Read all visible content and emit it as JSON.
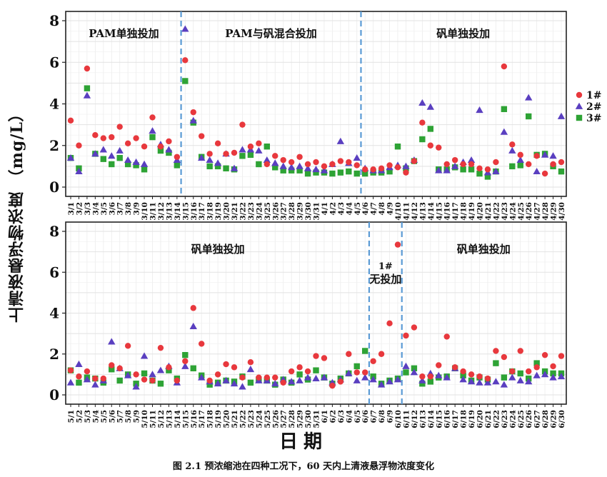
{
  "figure": {
    "ylabel": "上清液悬浮物浓度 （mg/L）",
    "xlabel": "日期",
    "caption": "图 2.1  预浓缩池在四种工况下，60 天内上清液悬浮物浓度变化"
  },
  "colors": {
    "s1": "#e8383d",
    "s2": "#5a3fc0",
    "s3": "#2ea335",
    "divider": "#5b9bd5"
  },
  "legend": [
    "1#",
    "2#",
    "3#"
  ],
  "chart_data": [
    {
      "type": "scatter",
      "ylim": [
        0,
        8
      ],
      "yticks": [
        0,
        2,
        4,
        6,
        8
      ],
      "grid": true,
      "legend_position": "right",
      "categories": [
        "3/1",
        "3/2",
        "3/3",
        "3/4",
        "3/5",
        "3/6",
        "3/7",
        "3/8",
        "3/9",
        "3/10",
        "3/11",
        "3/12",
        "3/13",
        "3/14",
        "3/15",
        "3/16",
        "3/17",
        "3/18",
        "3/19",
        "3/20",
        "3/21",
        "3/22",
        "3/23",
        "3/24",
        "3/25",
        "3/26",
        "3/27",
        "3/28",
        "3/29",
        "3/30",
        "3/31",
        "4/1",
        "4/2",
        "4/3",
        "4/4",
        "4/5",
        "4/6",
        "4/7",
        "4/8",
        "4/9",
        "4/10",
        "4/11",
        "4/12",
        "4/13",
        "4/14",
        "4/15",
        "4/16",
        "4/17",
        "4/18",
        "4/19",
        "4/20",
        "4/21",
        "4/22",
        "4/23",
        "4/24",
        "4/25",
        "4/26",
        "4/27",
        "4/28",
        "4/29",
        "4/30"
      ],
      "dividers_after_index": [
        13,
        35
      ],
      "regions": [
        {
          "label": "PAM单独投加",
          "start": 0,
          "end": 13
        },
        {
          "label": "PAM与矾混合投加",
          "start": 14,
          "end": 35
        },
        {
          "label": "矾单独投加",
          "start": 36,
          "end": 60
        }
      ],
      "series": [
        {
          "name": "1#",
          "values": [
            3.2,
            2.0,
            5.7,
            2.5,
            2.35,
            2.4,
            2.9,
            2.1,
            2.35,
            1.95,
            3.35,
            1.95,
            2.2,
            1.45,
            6.1,
            3.6,
            2.45,
            1.6,
            2.1,
            1.6,
            1.65,
            3.0,
            1.95,
            2.1,
            1.1,
            1.5,
            1.3,
            1.2,
            1.45,
            1.1,
            1.2,
            1.0,
            1.1,
            1.25,
            1.2,
            1.05,
            0.85,
            0.85,
            0.9,
            1.05,
            0.95,
            0.7,
            1.25,
            3.1,
            2.0,
            1.9,
            1.1,
            1.3,
            1.1,
            1.1,
            0.9,
            0.85,
            1.2,
            5.8,
            2.05,
            1.55,
            1.1,
            1.5,
            0.65,
            1.1,
            1.2
          ]
        },
        {
          "name": "2#",
          "values": [
            1.4,
            0.75,
            4.4,
            1.6,
            1.8,
            1.5,
            1.75,
            1.3,
            1.2,
            1.1,
            2.7,
            2.05,
            1.8,
            1.3,
            7.6,
            3.2,
            1.4,
            1.3,
            1.15,
            1.6,
            0.9,
            1.8,
            1.8,
            1.75,
            1.3,
            1.15,
            1.0,
            0.95,
            1.0,
            0.9,
            0.85,
            0.8,
            1.1,
            2.2,
            1.15,
            1.4,
            0.9,
            0.8,
            0.8,
            0.95,
            1.05,
            1.0,
            1.3,
            4.05,
            3.85,
            0.8,
            0.8,
            1.0,
            1.2,
            1.3,
            3.7,
            0.7,
            0.75,
            2.65,
            1.75,
            1.3,
            4.3,
            0.75,
            1.55,
            1.5,
            3.4
          ]
        },
        {
          "name": "3#",
          "values": [
            1.4,
            0.9,
            4.75,
            1.6,
            1.35,
            1.1,
            1.4,
            1.1,
            1.05,
            0.85,
            2.4,
            1.75,
            1.65,
            1.05,
            5.1,
            3.1,
            1.45,
            1.0,
            1.0,
            0.9,
            0.85,
            1.5,
            1.55,
            1.1,
            1.95,
            0.95,
            0.8,
            0.8,
            0.8,
            0.65,
            0.7,
            0.7,
            0.65,
            0.7,
            0.75,
            0.65,
            0.65,
            0.7,
            0.7,
            0.75,
            1.95,
            0.9,
            1.25,
            2.3,
            2.8,
            0.85,
            0.85,
            0.95,
            0.85,
            0.85,
            0.65,
            0.5,
            0.75,
            3.75,
            1.0,
            1.05,
            3.4,
            1.55,
            1.6,
            1.0,
            0.75
          ]
        }
      ]
    },
    {
      "type": "scatter",
      "ylim": [
        0,
        8
      ],
      "yticks": [
        0,
        2,
        4,
        6,
        8
      ],
      "grid": true,
      "categories": [
        "5/1",
        "5/2",
        "5/3",
        "5/4",
        "5/5",
        "5/6",
        "5/7",
        "5/8",
        "5/9",
        "5/10",
        "5/11",
        "5/12",
        "5/13",
        "5/14",
        "5/15",
        "5/16",
        "5/17",
        "5/18",
        "5/19",
        "5/20",
        "5/21",
        "5/22",
        "5/23",
        "5/24",
        "5/25",
        "5/26",
        "5/27",
        "5/28",
        "5/29",
        "5/30",
        "5/31",
        "6/1",
        "6/2",
        "6/3",
        "6/4",
        "6/5",
        "6/6",
        "6/7",
        "6/8",
        "6/9",
        "6/10",
        "6/11",
        "6/12",
        "6/13",
        "6/14",
        "6/15",
        "6/16",
        "6/17",
        "6/18",
        "6/19",
        "6/20",
        "6/21",
        "6/22",
        "6/23",
        "6/24",
        "6/25",
        "6/26",
        "6/27",
        "6/28",
        "6/29",
        "6/30"
      ],
      "dividers_after_index": [
        36,
        40
      ],
      "regions": [
        {
          "label": "矾单独投加",
          "start": 0,
          "end": 36
        },
        {
          "label": "1#\n无投加",
          "start": 37,
          "end": 40
        },
        {
          "label": "矾单独投加",
          "start": 41,
          "end": 60
        }
      ],
      "series": [
        {
          "name": "1#",
          "values": [
            1.2,
            0.9,
            1.15,
            0.8,
            0.8,
            1.45,
            1.3,
            2.4,
            1.0,
            0.75,
            0.7,
            2.3,
            1.35,
            0.7,
            1.65,
            4.25,
            2.5,
            0.7,
            1.0,
            1.5,
            1.35,
            0.85,
            1.6,
            0.85,
            0.85,
            0.85,
            0.6,
            1.15,
            1.35,
            1.15,
            1.9,
            1.8,
            0.45,
            0.65,
            2.0,
            1.1,
            1.1,
            1.65,
            2.0,
            3.5,
            7.35,
            2.9,
            3.3,
            0.9,
            0.9,
            1.45,
            2.85,
            1.35,
            1.15,
            1.0,
            0.9,
            0.8,
            2.15,
            1.85,
            1.15,
            2.15,
            1.15,
            1.35,
            1.95,
            1.4,
            1.9
          ]
        },
        {
          "name": "2#",
          "values": [
            0.6,
            1.5,
            0.75,
            0.5,
            0.7,
            2.6,
            1.3,
            0.95,
            0.4,
            1.9,
            1.0,
            1.2,
            1.4,
            0.6,
            1.4,
            3.35,
            0.85,
            0.65,
            0.55,
            0.7,
            0.55,
            0.4,
            1.25,
            0.7,
            0.7,
            0.55,
            0.75,
            0.65,
            0.7,
            0.85,
            0.8,
            0.85,
            0.6,
            0.75,
            1.05,
            0.7,
            0.85,
            0.75,
            0.5,
            0.65,
            0.75,
            1.4,
            1.1,
            0.7,
            1.05,
            0.95,
            0.85,
            1.3,
            0.75,
            0.65,
            0.6,
            0.6,
            0.65,
            0.5,
            0.85,
            0.7,
            0.65,
            0.95,
            1.0,
            0.85,
            0.9
          ]
        },
        {
          "name": "3#",
          "values": [
            1.2,
            0.6,
            0.85,
            0.8,
            0.6,
            1.25,
            0.7,
            1.0,
            0.55,
            1.05,
            0.7,
            0.55,
            1.2,
            0.8,
            1.95,
            1.3,
            0.95,
            0.5,
            0.6,
            0.7,
            0.65,
            0.9,
            0.6,
            0.75,
            0.7,
            0.5,
            0.75,
            0.6,
            1.0,
            0.75,
            1.2,
            0.85,
            0.55,
            0.8,
            1.05,
            1.4,
            2.15,
            0.9,
            0.55,
            0.7,
            0.8,
            1.1,
            1.3,
            0.55,
            0.65,
            0.85,
            0.9,
            1.3,
            0.95,
            0.7,
            0.85,
            0.75,
            1.55,
            0.85,
            1.15,
            1.05,
            0.8,
            1.55,
            1.15,
            1.05,
            1.05
          ]
        }
      ]
    }
  ]
}
